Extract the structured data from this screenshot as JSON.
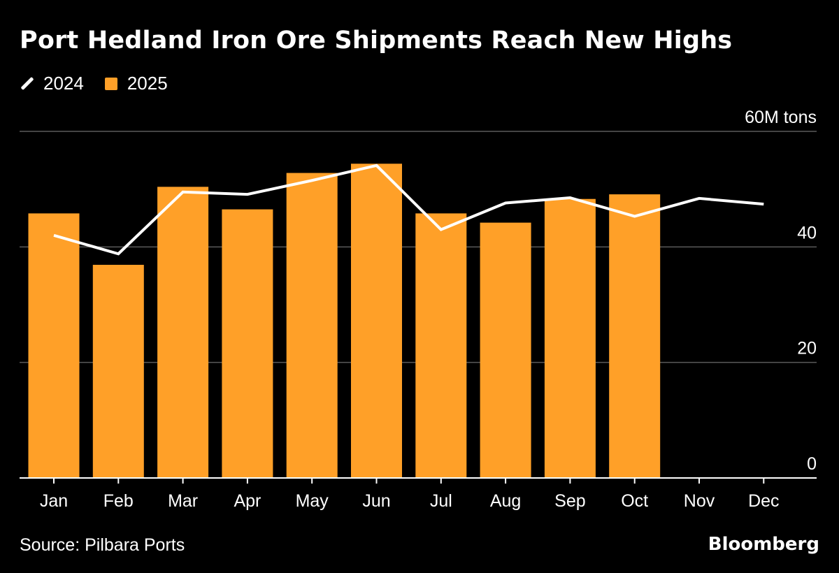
{
  "title": "Port Hedland Iron Ore Shipments Reach New Highs",
  "legend": [
    {
      "label": "2024",
      "kind": "line",
      "color": "#ffffff"
    },
    {
      "label": "2025",
      "kind": "bar",
      "color": "#ffa028"
    }
  ],
  "source": "Source: Pilbara Ports",
  "brand": "Bloomberg",
  "chart_data": {
    "type": "bar",
    "categories": [
      "Jan",
      "Feb",
      "Mar",
      "Apr",
      "May",
      "Jun",
      "Jul",
      "Aug",
      "Sep",
      "Oct",
      "Nov",
      "Dec"
    ],
    "series": [
      {
        "name": "2025",
        "type": "bar",
        "color": "#ffa028",
        "values": [
          45.8,
          36.9,
          50.4,
          46.5,
          52.8,
          54.4,
          45.8,
          44.2,
          48.3,
          49.1,
          null,
          null
        ]
      },
      {
        "name": "2024",
        "type": "line",
        "color": "#ffffff",
        "values": [
          42.0,
          38.8,
          49.5,
          49.1,
          51.5,
          54.1,
          43.0,
          47.6,
          48.5,
          45.3,
          48.4,
          47.4
        ]
      }
    ],
    "ylim": [
      0,
      60
    ],
    "yticks": [
      0,
      20,
      40,
      60
    ],
    "ytick_labels": [
      "0",
      "20",
      "40",
      "60M tons"
    ],
    "grid": true,
    "legend_position": "top-left"
  }
}
